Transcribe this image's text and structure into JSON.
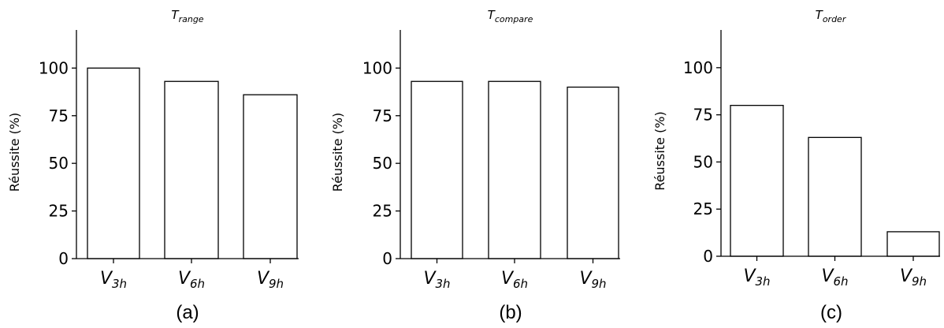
{
  "chart_data": [
    {
      "type": "bar",
      "title": {
        "base": "T",
        "sub": "range"
      },
      "ylabel": "Réussite (%)",
      "categories": [
        {
          "base": "V",
          "sub": "3h"
        },
        {
          "base": "V",
          "sub": "6h"
        },
        {
          "base": "V",
          "sub": "9h"
        }
      ],
      "values": [
        100,
        93,
        86
      ],
      "ylim": [
        0,
        120
      ],
      "yticks": [
        0,
        25,
        50,
        75,
        100
      ],
      "caption": "(a)"
    },
    {
      "type": "bar",
      "title": {
        "base": "T",
        "sub": "compare"
      },
      "ylabel": "Réussite (%)",
      "categories": [
        {
          "base": "V",
          "sub": "3h"
        },
        {
          "base": "V",
          "sub": "6h"
        },
        {
          "base": "V",
          "sub": "9h"
        }
      ],
      "values": [
        93,
        93,
        90
      ],
      "ylim": [
        0,
        120
      ],
      "yticks": [
        0,
        25,
        50,
        75,
        100
      ],
      "caption": "(b)"
    },
    {
      "type": "bar",
      "title": {
        "base": "T",
        "sub": "order"
      },
      "ylabel": "Réussite (%)",
      "categories": [
        {
          "base": "V",
          "sub": "3h"
        },
        {
          "base": "V",
          "sub": "6h"
        },
        {
          "base": "V",
          "sub": "9h"
        }
      ],
      "values": [
        80,
        63,
        13
      ],
      "ylim": [
        0,
        120
      ],
      "yticks": [
        0,
        25,
        50,
        75,
        100
      ],
      "caption": "(c)"
    }
  ],
  "colors": {
    "bar_fill": "#ffffff",
    "bar_stroke": "#000000"
  }
}
